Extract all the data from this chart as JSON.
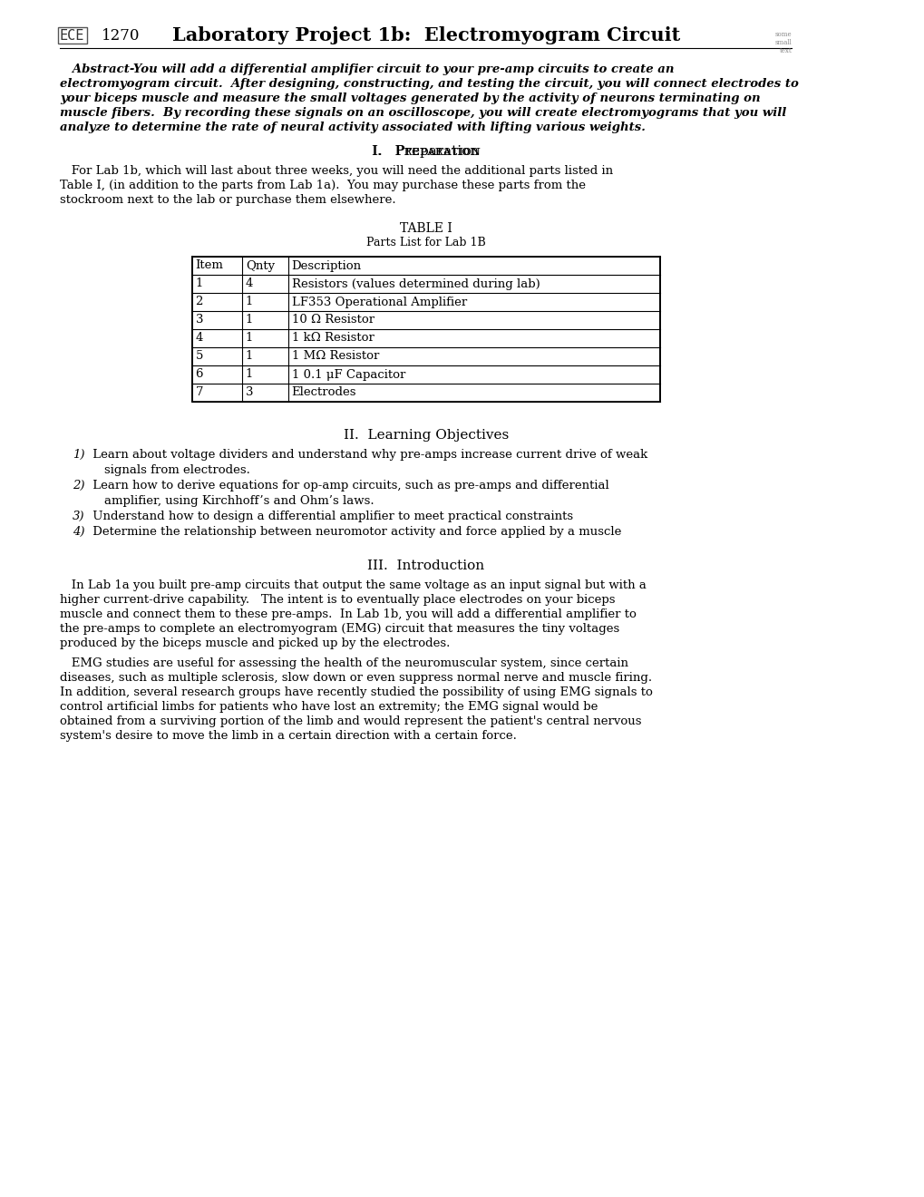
{
  "bg_color": "#ffffff",
  "text_color": "#000000",
  "header_left": "ECE 1270",
  "header_title": "Laboratory Project 1b:  Electromyogram Circuit",
  "header_right": "some\nsmall\ntext",
  "abstract_text": "Abstract-You will add a differential amplifier circuit to your pre-amp circuits to create an electromyogram circuit.  After designing, constructing, and testing the circuit, you will connect electrodes to your biceps muscle and measure the small voltages generated by the activity of neurons terminating on muscle fibers.  By recording these signals on an oscilloscope, you will create electromyograms that you will analyze to determine the rate of neural activity associated with lifting various weights.",
  "section1_title": "I.   Preparation",
  "section1_body": "For Lab 1b, which will last about three weeks, you will need the additional parts listed in Table I, (in addition to the parts from Lab 1a).  You may purchase these parts from the stockroom next to the lab or purchase them elsewhere.",
  "table_title": "TABLE I",
  "table_subtitle": "Parts List for Lab 1B",
  "table_headers": [
    "Item",
    "Qnty",
    "Description"
  ],
  "table_rows": [
    [
      "1",
      "4",
      "Resistors (values determined during lab)"
    ],
    [
      "2",
      "1",
      "LF353 Operational Amplifier"
    ],
    [
      "3",
      "1",
      "10 Ω Resistor"
    ],
    [
      "4",
      "1",
      "1 kΩ Resistor"
    ],
    [
      "5",
      "1",
      "1 MΩ Resistor"
    ],
    [
      "6",
      "1",
      "1 0.1 μF Capacitor"
    ],
    [
      "7",
      "3",
      "Electrodes"
    ]
  ],
  "section2_title": "II.  Learning Objectives",
  "section2_items": [
    "1) Learn about voltage dividers and understand why pre-amps increase current drive of weak\n    signals from electrodes.",
    "2) Learn how to derive equations for op-amp circuits, such as pre-amps and differential\n    amplifier, using Kirchhoff’s and Ohm’s laws.",
    "3) Understand how to design a differential amplifier to meet practical constraints",
    "4) Determine the relationship between neuromotor activity and force applied by a muscle"
  ],
  "section3_title": "III.  Introduction",
  "section3_para1": "In Lab 1a you built pre-amp circuits that output the same voltage as an input signal but with a higher current-drive capability.   The intent is to eventually place electrodes on your biceps muscle and connect them to these pre-amps.  In Lab 1b, you will add a differential amplifier to the pre-amps to complete an electromyogram (EMG) circuit that measures the tiny voltages produced by the biceps muscle and picked up by the electrodes.",
  "section3_para2": "EMG studies are useful for assessing the health of the neuromuscular system, since certain diseases, such as multiple sclerosis, slow down or even suppress normal nerve and muscle firing. In addition, several research groups have recently studied the possibility of using EMG signals to control artificial limbs for patients who have lost an extremity; the EMG signal would be obtained from a surviving portion of the limb and would represent the patient's central nervous system's desire to move the limb in a certain direction with a certain force."
}
